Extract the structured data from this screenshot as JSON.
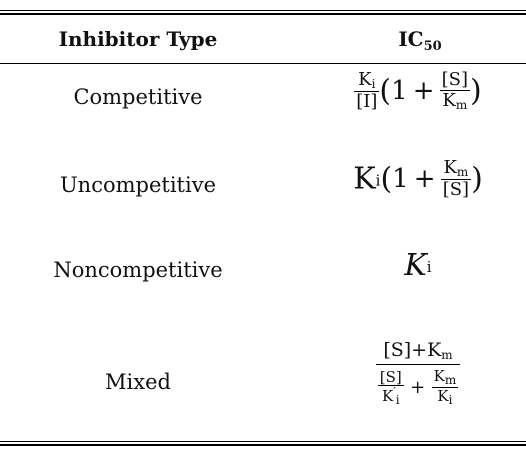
{
  "table": {
    "headers": [
      "Inhibitor Type",
      "IC",
      "50"
    ],
    "rows": [
      {
        "type": "Competitive"
      },
      {
        "type": "Uncompetitive"
      },
      {
        "type": "Noncompetitive"
      },
      {
        "type": "Mixed"
      }
    ]
  },
  "formulas": {
    "competitive": {
      "num": "K",
      "num_sub": "i",
      "den": "[I]",
      "lp": "(",
      "one": "1",
      "plus": "+",
      "inner_num": "[S]",
      "inner_den": "K",
      "inner_den_sub": "m",
      "rp": ")"
    },
    "uncompetitive": {
      "base": "K",
      "base_sub": "i",
      "lp": "(",
      "one": "1",
      "plus": "+",
      "inner_num": "K",
      "inner_num_sub": "m",
      "inner_den": "[S]",
      "rp": ")"
    },
    "noncompetitive": {
      "base": "K",
      "base_sub": "i"
    },
    "mixed": {
      "num": "[S]+K",
      "num_sub": "m",
      "d1_num": "[S]",
      "d1_den": "K",
      "d1_prime": "′",
      "d1_den_sub": "i",
      "plus": "+",
      "d2_num": "K",
      "d2_num_sub": "m",
      "d2_den": "K",
      "d2_den_sub": "i"
    }
  }
}
